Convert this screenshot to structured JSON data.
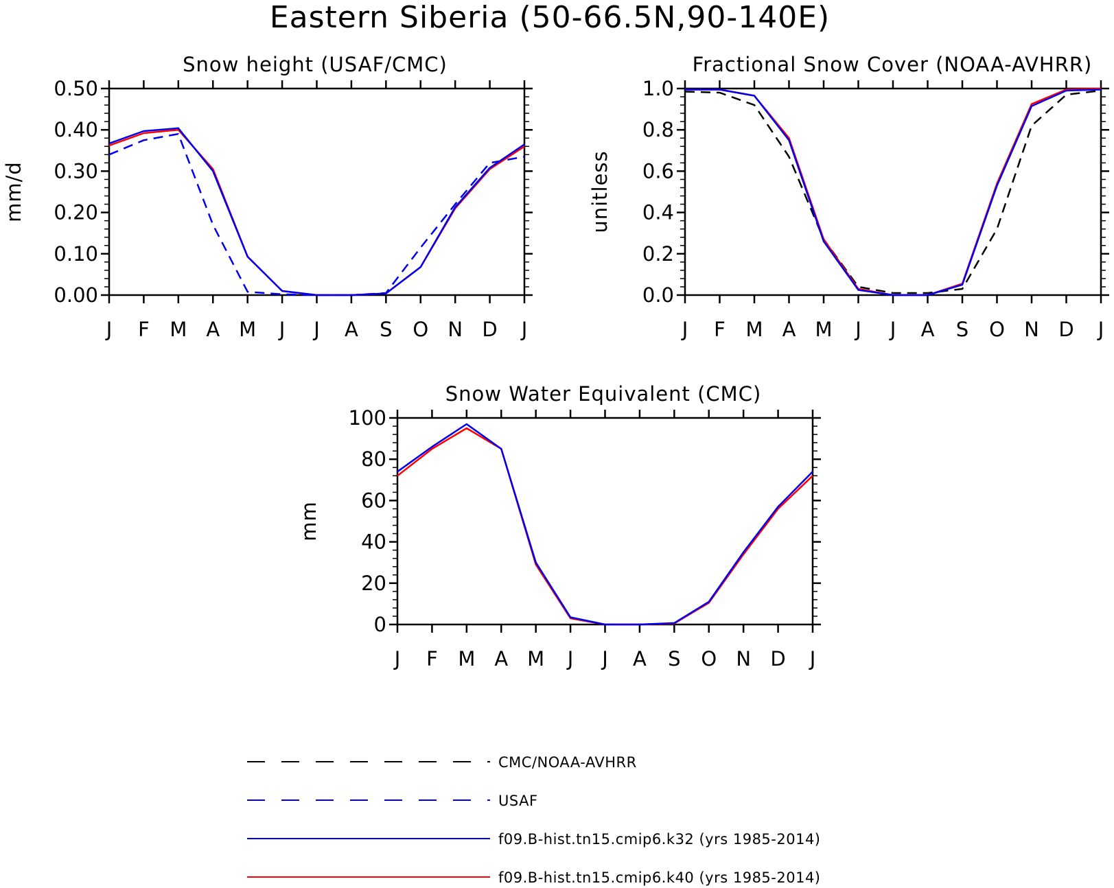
{
  "title": "Eastern Siberia (50-66.5N,90-140E)",
  "colors": {
    "model_k32": "#0000ee",
    "model_k40": "#ff0000",
    "usaf": "#0000ee",
    "cmc": "#000000"
  },
  "legend": [
    {
      "label": "CMC/NOAA-AVHRR",
      "color": "#000000",
      "dash": "dashed"
    },
    {
      "label": "USAF",
      "color": "#0000ee",
      "dash": "dashed"
    },
    {
      "label": "f09.B-hist.tn15.cmip6.k32 (yrs 1985-2014)",
      "color": "#0000ee",
      "dash": "solid"
    },
    {
      "label": "f09.B-hist.tn15.cmip6.k40 (yrs 1985-2014)",
      "color": "#ff0000",
      "dash": "solid"
    }
  ],
  "chart_data": [
    {
      "type": "line",
      "title": "Snow height (USAF/CMC)",
      "ylabel": "mm/d",
      "xlabel": "",
      "categories": [
        "J",
        "F",
        "M",
        "A",
        "M",
        "J",
        "J",
        "A",
        "S",
        "O",
        "N",
        "D",
        "J"
      ],
      "ylim": [
        0,
        0.5
      ],
      "yticks": [
        "0.00",
        "0.10",
        "0.20",
        "0.30",
        "0.40",
        "0.50"
      ],
      "grid": false,
      "series": [
        {
          "key": "usaf",
          "color": "#0000ee",
          "dash": "dashed",
          "values": [
            0.34,
            0.375,
            0.39,
            0.17,
            0.008,
            0.002,
            0.0,
            0.0,
            0.005,
            0.115,
            0.22,
            0.32,
            0.335
          ]
        },
        {
          "key": "k40",
          "color": "#ff0000",
          "dash": "solid",
          "values": [
            0.362,
            0.392,
            0.4,
            0.305,
            0.093,
            0.01,
            0.0,
            0.0,
            0.004,
            0.068,
            0.21,
            0.305,
            0.36
          ]
        },
        {
          "key": "k32",
          "color": "#0000ee",
          "dash": "solid",
          "values": [
            0.367,
            0.397,
            0.404,
            0.3,
            0.093,
            0.01,
            0.0,
            0.0,
            0.004,
            0.068,
            0.213,
            0.308,
            0.365
          ]
        }
      ]
    },
    {
      "type": "line",
      "title": "Fractional Snow Cover (NOAA-AVHRR)",
      "ylabel": "unitless",
      "xlabel": "",
      "categories": [
        "J",
        "F",
        "M",
        "A",
        "M",
        "J",
        "J",
        "A",
        "S",
        "O",
        "N",
        "D",
        "J"
      ],
      "ylim": [
        0,
        1
      ],
      "yticks": [
        "0.0",
        "0.2",
        "0.4",
        "0.6",
        "0.8",
        "1.0"
      ],
      "grid": false,
      "series": [
        {
          "key": "cmc",
          "color": "#000000",
          "dash": "dashed",
          "values": [
            0.985,
            0.98,
            0.92,
            0.67,
            0.27,
            0.04,
            0.01,
            0.01,
            0.03,
            0.32,
            0.82,
            0.97,
            0.99
          ]
        },
        {
          "key": "k40",
          "color": "#ff0000",
          "dash": "solid",
          "values": [
            0.995,
            0.995,
            0.965,
            0.76,
            0.27,
            0.03,
            0.0,
            0.0,
            0.055,
            0.54,
            0.925,
            0.995,
            1.0
          ]
        },
        {
          "key": "k32",
          "color": "#0000ee",
          "dash": "solid",
          "values": [
            0.995,
            0.995,
            0.965,
            0.75,
            0.26,
            0.025,
            0.0,
            0.0,
            0.05,
            0.53,
            0.915,
            0.99,
            0.995
          ]
        }
      ]
    },
    {
      "type": "line",
      "title": "Snow Water Equivalent (CMC)",
      "ylabel": "mm",
      "xlabel": "",
      "categories": [
        "J",
        "F",
        "M",
        "A",
        "M",
        "J",
        "J",
        "A",
        "S",
        "O",
        "N",
        "D",
        "J"
      ],
      "ylim": [
        0,
        100
      ],
      "yticks": [
        "0",
        "20",
        "40",
        "60",
        "80",
        "100"
      ],
      "grid": false,
      "series": [
        {
          "key": "k40",
          "color": "#ff0000",
          "dash": "solid",
          "values": [
            72,
            85,
            95,
            85,
            29,
            3,
            0,
            0,
            0.5,
            10.5,
            34,
            56,
            72
          ]
        },
        {
          "key": "k32",
          "color": "#0000ee",
          "dash": "solid",
          "values": [
            74,
            86,
            97,
            85,
            30,
            3.5,
            0,
            0,
            0.7,
            11,
            35,
            57,
            74
          ]
        }
      ]
    }
  ]
}
